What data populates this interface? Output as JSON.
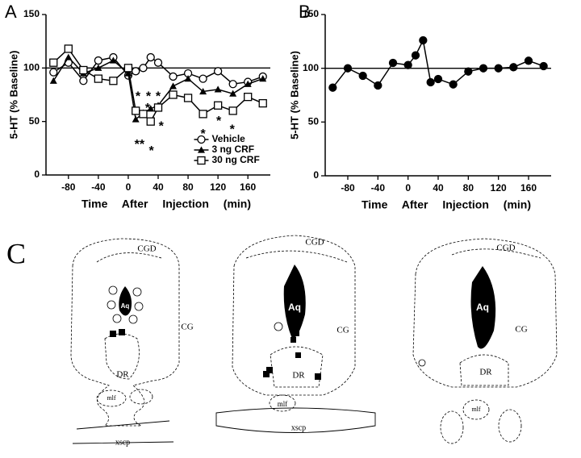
{
  "chart_data": [
    {
      "type": "line",
      "panel_label": "A",
      "ylabel": "5-HT (% Baseline)",
      "xlabel": "Time After Injection (min)",
      "x": [
        -100,
        -80,
        -60,
        -40,
        -20,
        0,
        10,
        20,
        30,
        40,
        60,
        80,
        100,
        120,
        140,
        160,
        180
      ],
      "series": [
        {
          "name": "Vehicle",
          "color": "#000000",
          "marker": "circle-open",
          "values": [
            96,
            105,
            88,
            107,
            110,
            93,
            97,
            100,
            110,
            105,
            92,
            95,
            90,
            97,
            85,
            87,
            92
          ]
        },
        {
          "name": "3 ng CRF",
          "color": "#000000",
          "marker": "triangle",
          "values": [
            88,
            110,
            95,
            100,
            107,
            95,
            52,
            58,
            62,
            65,
            83,
            90,
            78,
            80,
            76,
            85,
            90
          ]
        },
        {
          "name": "30 ng CRF",
          "color": "#000000",
          "marker": "square-open",
          "values": [
            105,
            118,
            98,
            90,
            88,
            100,
            60,
            57,
            50,
            63,
            75,
            72,
            57,
            65,
            60,
            73,
            67
          ]
        }
      ],
      "annotations": [
        {
          "text": "*",
          "x": 13,
          "y": 73
        },
        {
          "text": "*",
          "x": 27,
          "y": 73
        },
        {
          "text": "*",
          "x": 40,
          "y": 73
        },
        {
          "text": "*",
          "x": 26,
          "y": 62
        },
        {
          "text": "*",
          "x": 44,
          "y": 45
        },
        {
          "text": "**",
          "x": 15,
          "y": 28
        },
        {
          "text": "*",
          "x": 31,
          "y": 22
        },
        {
          "text": "*",
          "x": 100,
          "y": 38
        },
        {
          "text": "*",
          "x": 121,
          "y": 50
        },
        {
          "text": "*",
          "x": 139,
          "y": 42
        }
      ],
      "reference_line": 100,
      "legend": "lower right",
      "xlim": [
        -110,
        190
      ],
      "xticks": [
        -80,
        -40,
        0,
        40,
        80,
        120,
        160
      ],
      "ylim": [
        0,
        150
      ],
      "yticks": [
        0,
        50,
        100,
        150
      ]
    },
    {
      "type": "line",
      "panel_label": "B",
      "ylabel": "5-HT (% Baseline)",
      "xlabel": "Time After Injection (min)",
      "x": [
        -100,
        -80,
        -60,
        -40,
        -20,
        0,
        10,
        20,
        30,
        40,
        60,
        80,
        100,
        120,
        140,
        160,
        180
      ],
      "series": [
        {
          "color": "#000000",
          "marker": "circle",
          "values": [
            82,
            100,
            93,
            84,
            105,
            103,
            112,
            126,
            87,
            90,
            85,
            97,
            100,
            100,
            101,
            107,
            102
          ]
        }
      ],
      "reference_line": 100,
      "xlim": [
        -110,
        190
      ],
      "xticks": [
        -80,
        -40,
        0,
        40,
        80,
        120,
        160
      ],
      "ylim": [
        0,
        150
      ],
      "yticks": [
        0,
        50,
        100,
        150
      ]
    }
  ],
  "diagram": {
    "label": "C",
    "sections": [
      {
        "labels": [
          "CGD",
          "Aq",
          "CG",
          "DR",
          "mlf",
          "xscp"
        ]
      },
      {
        "labels": [
          "CGD",
          "Aq",
          "CG",
          "DR",
          "mlf",
          "xscp"
        ]
      },
      {
        "labels": [
          "CGD",
          "Aq",
          "CG",
          "DR",
          "mlf"
        ]
      }
    ]
  }
}
